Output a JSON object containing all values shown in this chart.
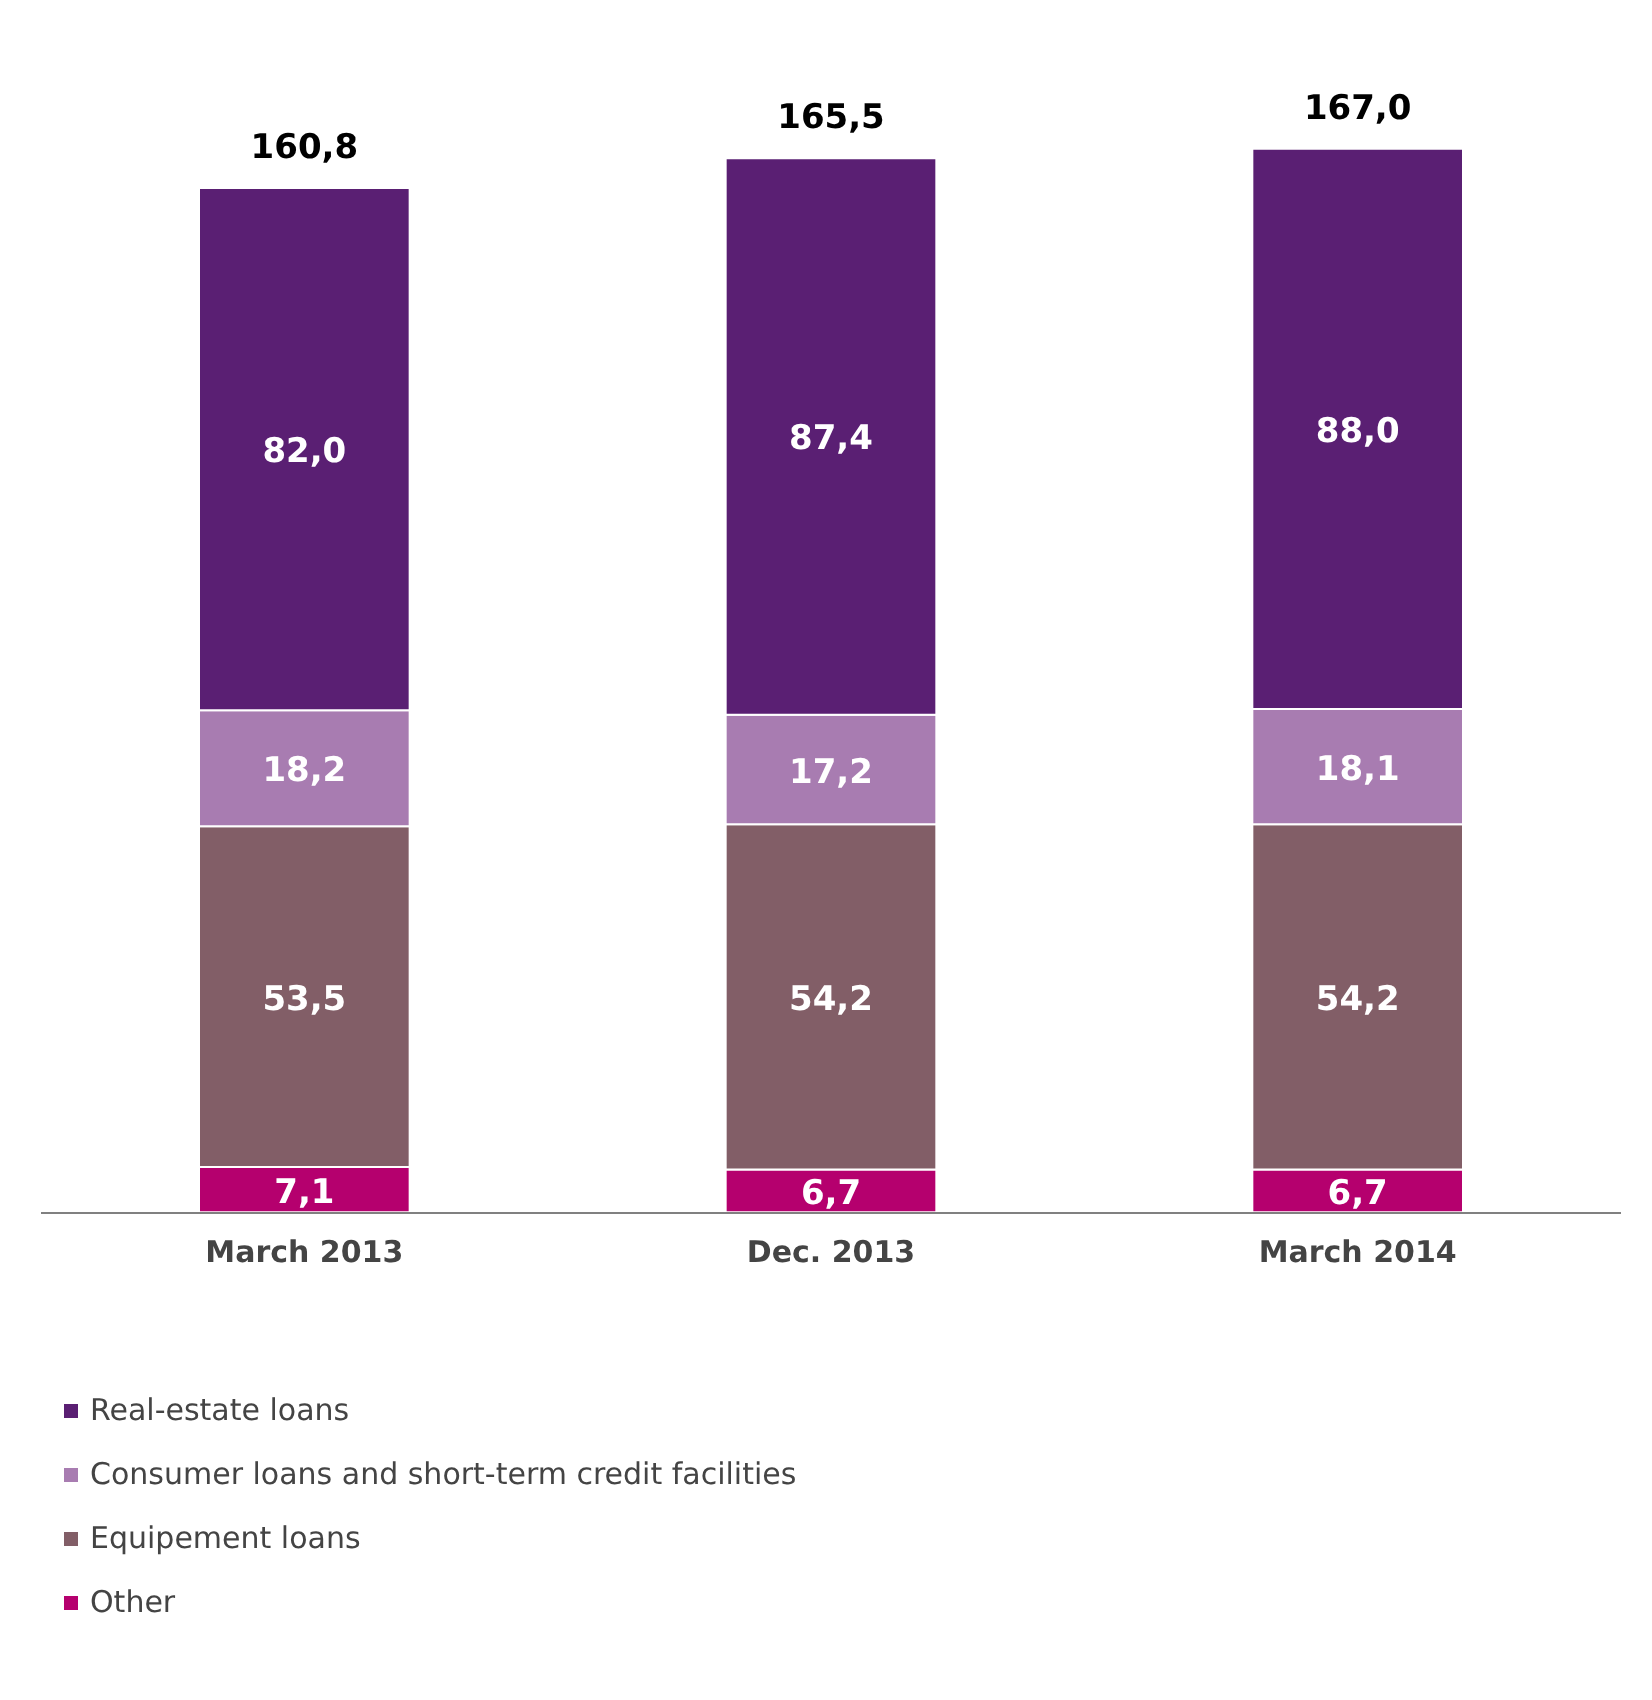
{
  "chart_data": {
    "type": "bar",
    "stacked": true,
    "categories": [
      "March 2013",
      "Dec. 2013",
      "March 2014"
    ],
    "series": [
      {
        "name": "Other",
        "color": "#b5006e",
        "values": [
          7.1,
          6.7,
          6.7
        ],
        "value_labels": [
          "7,1",
          "6,7",
          "6,7"
        ]
      },
      {
        "name": "Equipement loans",
        "color": "#825e67",
        "values": [
          53.5,
          54.2,
          54.2
        ],
        "value_labels": [
          "53,5",
          "54,2",
          "54,2"
        ]
      },
      {
        "name": "Consumer loans and short-term credit facilities",
        "color": "#a87cb1",
        "values": [
          18.2,
          17.2,
          18.1
        ],
        "value_labels": [
          "18,2",
          "17,2",
          "18,1"
        ]
      },
      {
        "name": "Real-estate loans",
        "color": "#5a1f73",
        "values": [
          82.0,
          87.4,
          88.0
        ],
        "value_labels": [
          "82,0",
          "87,4",
          "88,0"
        ]
      }
    ],
    "totals": [
      "160,8",
      "165,5",
      "167,0"
    ],
    "legend": "bottom"
  }
}
